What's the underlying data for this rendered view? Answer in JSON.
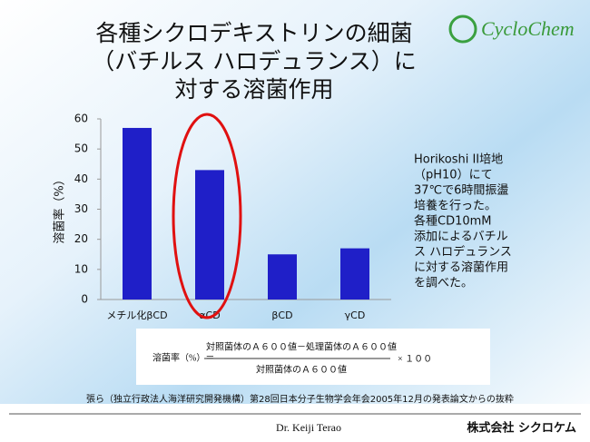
{
  "chart_data": {
    "type": "bar",
    "title": [
      "各種シクロデキストリンの細菌",
      "（バチルス ハロデュランス）に",
      "対する溶菌作用"
    ],
    "ylabel": "溶菌率（%）",
    "categories": [
      "メチル化βCD",
      "αCD",
      "βCD",
      "γCD"
    ],
    "values": [
      57,
      43,
      15,
      17
    ],
    "color": "#1f1fc8",
    "ylim": [
      0,
      60
    ],
    "yticks": [
      0,
      10,
      20,
      30,
      40,
      50,
      60
    ],
    "grid": false
  },
  "slide": {
    "logo": "CycloChem",
    "note": [
      "Horikoshi II培地",
      "（pH10）にて",
      "37℃で6時間振盪",
      "培養を行った。",
      "各種CD10mM",
      "添加によるバチル",
      "ス ハロデュランス",
      "に対する溶菌作用",
      "を調べた。"
    ],
    "formula": {
      "left": "溶菌率（%）＝",
      "numerator": "対照菌体のＡ６００値－処理菌体のＡ６００値",
      "denominator": "対照菌体のＡ６００値",
      "right": "× １００"
    },
    "citation": "張ら（独立行政法人海洋研究開発機構）第28回日本分子生物学会年会2005年12月の発表論文からの抜粋",
    "author": "Dr. Keiji Terao",
    "company": "株式会社 シクロケム"
  }
}
